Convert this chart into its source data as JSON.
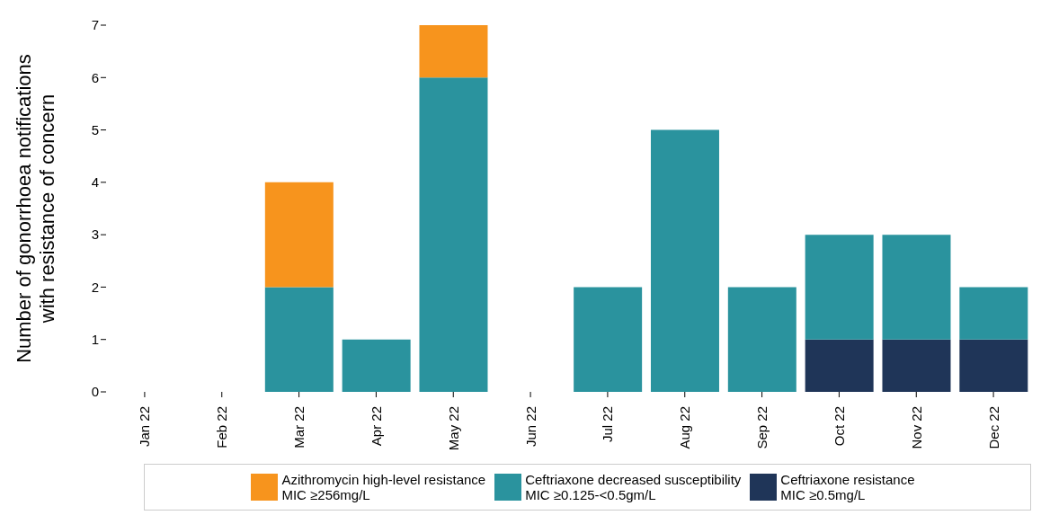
{
  "chart_data": {
    "type": "bar",
    "stacked": true,
    "categories": [
      "Jan 22",
      "Feb 22",
      "Mar 22",
      "Apr 22",
      "May 22",
      "Jun 22",
      "Jul 22",
      "Aug 22",
      "Sep 22",
      "Oct 22",
      "Nov 22",
      "Dec 22"
    ],
    "series": [
      {
        "name": "Ceftriaxone resistance\nMIC ≥0.5mg/L",
        "color": "#1f3558",
        "values": [
          null,
          null,
          null,
          null,
          null,
          null,
          null,
          null,
          null,
          1,
          1,
          1
        ]
      },
      {
        "name": "Ceftriaxone decreased susceptibility\nMIC ≥0.125-<0.5gm/L",
        "color": "#2a939e",
        "values": [
          null,
          null,
          2,
          1,
          6,
          null,
          2,
          5,
          2,
          2,
          2,
          1
        ]
      },
      {
        "name": "Azithromycin high-level resistance\nMIC ≥256mg/L",
        "color": "#f7941d",
        "values": [
          null,
          null,
          2,
          null,
          1,
          null,
          null,
          null,
          null,
          null,
          null,
          null
        ]
      }
    ],
    "ylabel": "Number of gonorrhoea notifications\nwith resistance of concern",
    "ylim": [
      0,
      7
    ],
    "yticks": [
      0,
      1,
      2,
      3,
      4,
      5,
      6,
      7
    ],
    "grid": false,
    "legend": "bottom"
  }
}
